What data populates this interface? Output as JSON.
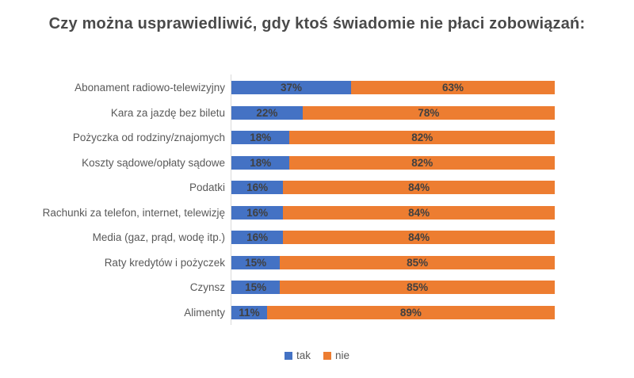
{
  "title": "Czy można usprawiedliwić, gdy ktoś świadomie nie płaci zobowiązań:",
  "colors": {
    "series_tak": "#4472C4",
    "series_nie": "#ED7D31",
    "data_label": "#404040",
    "category_label": "#595959",
    "title_text": "#4A4A4A",
    "axis_line": "#D9D9D9",
    "background": "#FFFFFF"
  },
  "legend": {
    "position": "bottom",
    "items": [
      {
        "label": "tak",
        "color": "#4472C4"
      },
      {
        "label": "nie",
        "color": "#ED7D31"
      }
    ]
  },
  "chart_data": {
    "type": "bar",
    "variant": "100-percent-stacked-horizontal",
    "title": "Czy można usprawiedliwić, gdy ktoś świadomie nie płaci zobowiązań:",
    "categories": [
      "Abonament radiowo-telewizyjny",
      "Kara za jazdę bez biletu",
      "Pożyczka od rodziny/znajomych",
      "Koszty sądowe/opłaty sądowe",
      "Podatki",
      "Rachunki za telefon, internet, telewizję",
      "Media (gaz, prąd, wodę itp.)",
      "Raty kredytów i pożyczek",
      "Czynsz",
      "Alimenty"
    ],
    "series": [
      {
        "name": "tak",
        "color": "#4472C4",
        "values": [
          37,
          22,
          18,
          18,
          16,
          16,
          16,
          15,
          15,
          11
        ]
      },
      {
        "name": "nie",
        "color": "#ED7D31",
        "values": [
          63,
          78,
          82,
          82,
          84,
          84,
          84,
          85,
          85,
          89
        ]
      }
    ],
    "value_suffix": "%",
    "xlim": [
      0,
      100
    ],
    "grid": false,
    "data_labels": true,
    "legend_position": "bottom"
  }
}
